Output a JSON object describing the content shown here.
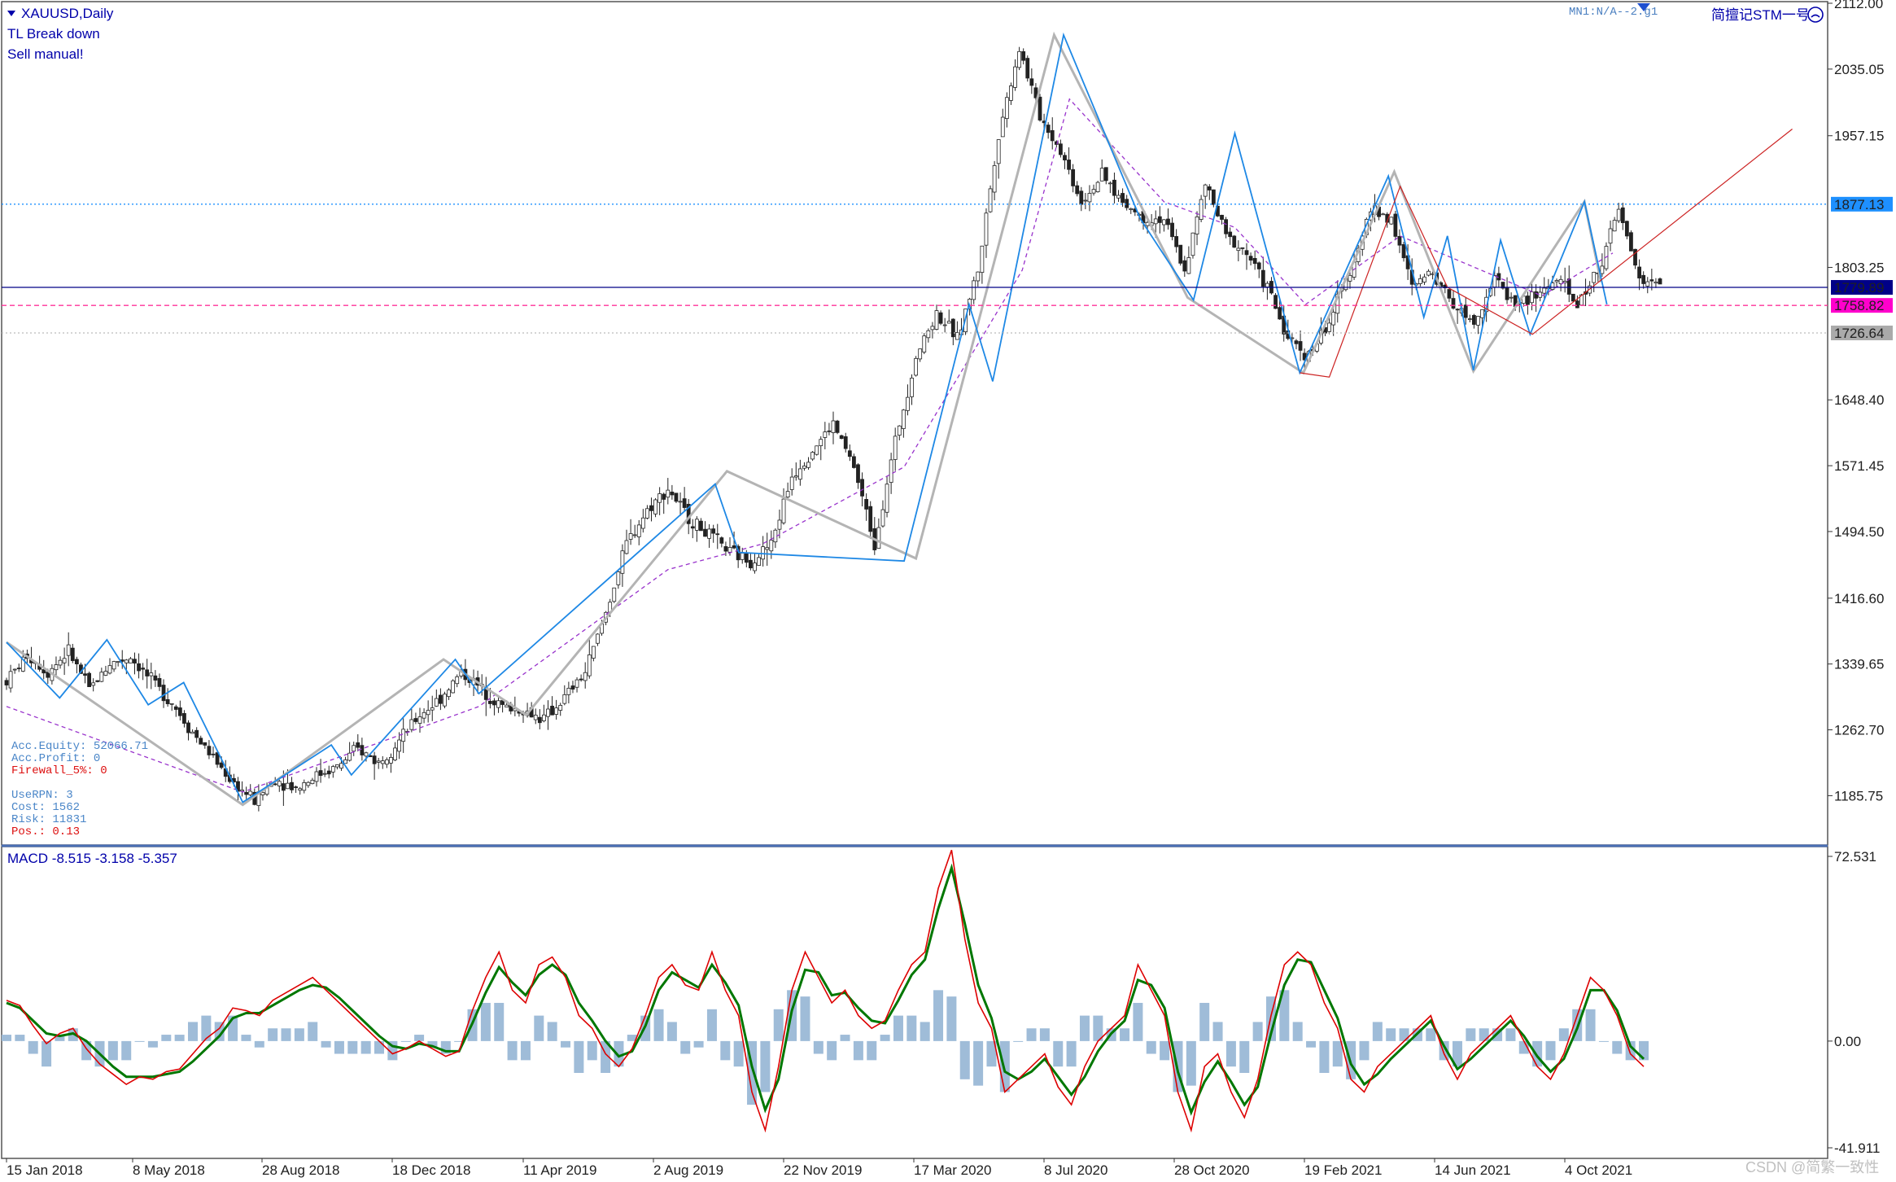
{
  "header": {
    "symbol": "XAUUSD,Daily",
    "line2": "TL Break down",
    "line3": "Sell manual!",
    "right_label": "简擅记STM一号",
    "mn1_label": "MN1:N/A--2.g1"
  },
  "account": {
    "equity": "Acc.Equity: 52066.71",
    "profit": "Acc.Profit: 0",
    "firewall": "Firewall_5%:  0",
    "userpn": "UseRPN: 3",
    "cost": "Cost: 1562",
    "risk": "Risk: 11831",
    "pos": "Pos.: 0.13"
  },
  "macd_label": "MACD -8.515 -3.158 -5.357",
  "watermark": "CSDN @简繁一致性",
  "colors": {
    "accent": "#1e90ff",
    "zigzag_gray": "#b4b4b4",
    "zigzag_blue": "#1e88e5",
    "zigzag_red": "#cc2222",
    "macd_line": "#dd0000",
    "signal_line": "#007700",
    "histogram": "#9fbcd8",
    "ma_line": "#9933cc"
  },
  "chart_data": [
    {
      "type": "candlestick",
      "title": "XAUUSD,Daily",
      "ylim": [
        1130,
        2112
      ],
      "y_ticks": [
        "2112.00",
        "2035.05",
        "1957.15",
        "1803.25",
        "1648.40",
        "1571.45",
        "1494.50",
        "1416.60",
        "1339.65",
        "1262.70",
        "1185.75"
      ],
      "x_ticks": [
        "15 Jan 2018",
        "8 May 2018",
        "28 Aug 2018",
        "18 Dec 2018",
        "11 Apr 2019",
        "2 Aug 2019",
        "22 Nov 2019",
        "17 Mar 2020",
        "8 Jul 2020",
        "28 Oct 2020",
        "19 Feb 2021",
        "14 Jun 2021",
        "4 Oct 2021"
      ],
      "price_levels": [
        {
          "label": "1877.13",
          "value": 1877.13,
          "style": "dotted",
          "color": "#1e90ff",
          "box": "#1e90ff"
        },
        {
          "label": "1779.89",
          "value": 1779.89,
          "style": "solid",
          "color": "#000088",
          "box": "#000088"
        },
        {
          "label": "1758.82",
          "value": 1758.82,
          "style": "dashed",
          "color": "#ff3399",
          "box": "#ff00cc"
        },
        {
          "label": "1726.64",
          "value": 1726.64,
          "style": "dotted",
          "color": "#bbbbbb",
          "box": "#aaaaaa"
        }
      ],
      "close_path": [
        [
          0,
          1320
        ],
        [
          5,
          1350
        ],
        [
          10,
          1330
        ],
        [
          15,
          1355
        ],
        [
          20,
          1310
        ],
        [
          25,
          1340
        ],
        [
          30,
          1348
        ],
        [
          35,
          1320
        ],
        [
          40,
          1295
        ],
        [
          45,
          1260
        ],
        [
          50,
          1230
        ],
        [
          55,
          1200
        ],
        [
          60,
          1180
        ],
        [
          65,
          1205
        ],
        [
          70,
          1195
        ],
        [
          75,
          1210
        ],
        [
          80,
          1220
        ],
        [
          85,
          1240
        ],
        [
          90,
          1225
        ],
        [
          95,
          1250
        ],
        [
          100,
          1280
        ],
        [
          105,
          1300
        ],
        [
          110,
          1330
        ],
        [
          115,
          1310
        ],
        [
          120,
          1290
        ],
        [
          125,
          1285
        ],
        [
          130,
          1275
        ],
        [
          135,
          1300
        ],
        [
          140,
          1330
        ],
        [
          145,
          1400
        ],
        [
          150,
          1480
        ],
        [
          155,
          1520
        ],
        [
          160,
          1545
        ],
        [
          165,
          1510
        ],
        [
          170,
          1490
        ],
        [
          175,
          1470
        ],
        [
          180,
          1460
        ],
        [
          185,
          1480
        ],
        [
          190,
          1560
        ],
        [
          195,
          1590
        ],
        [
          200,
          1620
        ],
        [
          205,
          1570
        ],
        [
          210,
          1480
        ],
        [
          215,
          1600
        ],
        [
          220,
          1700
        ],
        [
          225,
          1750
        ],
        [
          230,
          1720
        ],
        [
          235,
          1800
        ],
        [
          240,
          1960
        ],
        [
          245,
          2060
        ],
        [
          250,
          1980
        ],
        [
          255,
          1940
        ],
        [
          260,
          1880
        ],
        [
          265,
          1910
        ],
        [
          270,
          1880
        ],
        [
          275,
          1860
        ],
        [
          280,
          1860
        ],
        [
          285,
          1800
        ],
        [
          290,
          1900
        ],
        [
          295,
          1840
        ],
        [
          300,
          1820
        ],
        [
          305,
          1780
        ],
        [
          310,
          1720
        ],
        [
          315,
          1700
        ],
        [
          320,
          1740
        ],
        [
          325,
          1800
        ],
        [
          330,
          1870
        ],
        [
          335,
          1860
        ],
        [
          340,
          1780
        ],
        [
          345,
          1800
        ],
        [
          350,
          1760
        ],
        [
          355,
          1740
        ],
        [
          360,
          1790
        ],
        [
          365,
          1760
        ],
        [
          370,
          1770
        ],
        [
          375,
          1790
        ],
        [
          380,
          1760
        ],
        [
          385,
          1800
        ],
        [
          390,
          1870
        ],
        [
          395,
          1790
        ],
        [
          400,
          1782
        ]
      ],
      "zigzag_gray": [
        [
          0,
          1365
        ],
        [
          200,
          1175
        ],
        [
          370,
          1345
        ],
        [
          440,
          1280
        ],
        [
          610,
          1565
        ],
        [
          770,
          1463
        ],
        [
          887,
          2075
        ],
        [
          1000,
          1768
        ],
        [
          1098,
          1680
        ],
        [
          1175,
          1915
        ],
        [
          1242,
          1682
        ],
        [
          1336,
          1880
        ],
        [
          1350,
          1786
        ]
      ],
      "zigzag_blue": [
        [
          0,
          1365
        ],
        [
          45,
          1300
        ],
        [
          85,
          1368
        ],
        [
          120,
          1292
        ],
        [
          150,
          1318
        ],
        [
          200,
          1178
        ],
        [
          275,
          1245
        ],
        [
          292,
          1210
        ],
        [
          380,
          1345
        ],
        [
          400,
          1305
        ],
        [
          600,
          1550
        ],
        [
          620,
          1470
        ],
        [
          760,
          1460
        ],
        [
          815,
          1760
        ],
        [
          835,
          1670
        ],
        [
          895,
          2075
        ],
        [
          960,
          1860
        ],
        [
          1005,
          1765
        ],
        [
          1040,
          1960
        ],
        [
          1095,
          1680
        ],
        [
          1170,
          1910
        ],
        [
          1200,
          1745
        ],
        [
          1220,
          1840
        ],
        [
          1242,
          1683
        ],
        [
          1265,
          1835
        ],
        [
          1290,
          1725
        ],
        [
          1336,
          1880
        ],
        [
          1355,
          1760
        ]
      ],
      "zigzag_red": [
        [
          1095,
          1680
        ],
        [
          1120,
          1675
        ],
        [
          1180,
          1898
        ],
        [
          1220,
          1780
        ],
        [
          1292,
          1725
        ],
        [
          1512,
          1965
        ]
      ],
      "ma_path": [
        [
          0,
          1290
        ],
        [
          200,
          1190
        ],
        [
          400,
          1290
        ],
        [
          560,
          1450
        ],
        [
          640,
          1480
        ],
        [
          760,
          1570
        ],
        [
          860,
          1800
        ],
        [
          900,
          2000
        ],
        [
          980,
          1880
        ],
        [
          1040,
          1850
        ],
        [
          1100,
          1760
        ],
        [
          1180,
          1840
        ],
        [
          1300,
          1770
        ],
        [
          1360,
          1820
        ]
      ]
    },
    {
      "type": "line",
      "title": "MACD -8.515 -3.158 -5.357",
      "ylim": [
        -41.911,
        72.531
      ],
      "y_ticks": [
        "72.531",
        "0.00",
        "-41.911"
      ],
      "series": [
        {
          "name": "MACD",
          "values": [
            16,
            14,
            6,
            -1,
            3,
            5,
            -3,
            -9,
            -13,
            -17,
            -14,
            -15,
            -12,
            -11,
            -5,
            1,
            5,
            13,
            12,
            10,
            16,
            19,
            22,
            25,
            20,
            15,
            10,
            5,
            0,
            -5,
            -3,
            0,
            -3,
            -6,
            -4,
            12,
            25,
            35,
            20,
            15,
            30,
            33,
            25,
            10,
            5,
            -5,
            -10,
            -3,
            10,
            25,
            30,
            22,
            20,
            35,
            20,
            10,
            -20,
            -35,
            -10,
            20,
            35,
            25,
            15,
            20,
            10,
            5,
            8,
            20,
            30,
            35,
            60,
            75,
            40,
            15,
            5,
            -20,
            -15,
            -10,
            -5,
            -18,
            -25,
            -10,
            0,
            5,
            10,
            30,
            20,
            10,
            -20,
            -35,
            -10,
            -5,
            -20,
            -30,
            -15,
            10,
            30,
            35,
            30,
            15,
            5,
            -15,
            -20,
            -10,
            -5,
            0,
            5,
            10,
            -5,
            -15,
            -5,
            0,
            5,
            10,
            0,
            -10,
            -15,
            -5,
            10,
            25,
            20,
            10,
            -5,
            -10
          ]
        },
        {
          "name": "Signal",
          "values": [
            15,
            13,
            8,
            3,
            2,
            3,
            0,
            -5,
            -10,
            -14,
            -14,
            -14,
            -13,
            -12,
            -8,
            -3,
            2,
            9,
            11,
            11,
            14,
            17,
            20,
            22,
            21,
            17,
            12,
            7,
            2,
            -2,
            -3,
            -1,
            -2,
            -4,
            -4,
            7,
            19,
            29,
            23,
            18,
            26,
            30,
            26,
            15,
            8,
            0,
            -6,
            -4,
            6,
            20,
            27,
            24,
            21,
            30,
            23,
            14,
            -10,
            -27,
            -15,
            12,
            28,
            27,
            18,
            19,
            13,
            8,
            7,
            16,
            26,
            32,
            52,
            68,
            46,
            22,
            9,
            -12,
            -15,
            -12,
            -7,
            -14,
            -21,
            -14,
            -4,
            3,
            8,
            24,
            22,
            13,
            -12,
            -28,
            -16,
            -8,
            -16,
            -25,
            -18,
            3,
            22,
            32,
            31,
            20,
            9,
            -9,
            -17,
            -13,
            -7,
            -2,
            3,
            8,
            -2,
            -11,
            -7,
            -2,
            3,
            8,
            2,
            -6,
            -12,
            -7,
            5,
            20,
            20,
            12,
            -2,
            -7
          ]
        },
        {
          "name": "Histogram",
          "values": [
            1,
            1,
            -2,
            -4,
            1,
            2,
            -3,
            -4,
            -3,
            -3,
            0,
            -1,
            1,
            1,
            3,
            4,
            3,
            4,
            1,
            -1,
            2,
            2,
            2,
            3,
            -1,
            -2,
            -2,
            -2,
            -2,
            -3,
            0,
            1,
            -1,
            -2,
            0,
            5,
            6,
            6,
            -3,
            -3,
            4,
            3,
            -1,
            -5,
            -3,
            -5,
            -4,
            1,
            4,
            5,
            3,
            -2,
            -1,
            5,
            -3,
            -4,
            -10,
            -8,
            5,
            8,
            7,
            -2,
            -3,
            1,
            -3,
            -3,
            1,
            4,
            4,
            3,
            8,
            7,
            -6,
            -7,
            -4,
            -8,
            0,
            2,
            2,
            -4,
            -4,
            4,
            4,
            2,
            2,
            6,
            -2,
            -3,
            -8,
            -7,
            6,
            3,
            -4,
            -5,
            3,
            7,
            8,
            3,
            -1,
            -5,
            -4,
            -6,
            -3,
            3,
            2,
            2,
            2,
            2,
            -3,
            -4,
            2,
            2,
            2,
            2,
            -2,
            -4,
            -3,
            2,
            5,
            5,
            0,
            -2,
            -3,
            -3
          ]
        }
      ]
    }
  ]
}
